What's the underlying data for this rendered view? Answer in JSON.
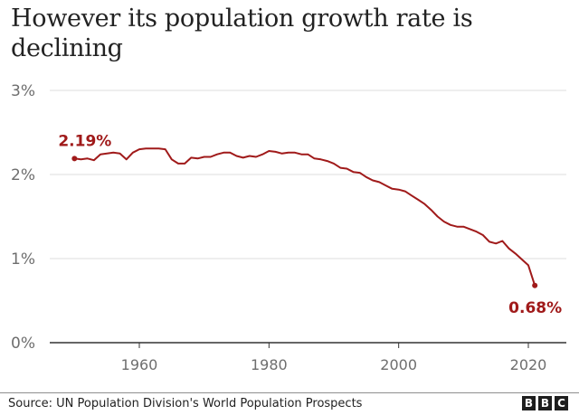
{
  "chart_data": {
    "type": "line",
    "title": "However its population growth rate is declining",
    "xlabel": "",
    "ylabel": "",
    "xlim": [
      1950,
      2021
    ],
    "ylim": [
      0,
      3
    ],
    "grid": true,
    "y_ticks": [
      "0%",
      "1%",
      "2%",
      "3%"
    ],
    "y_tick_values": [
      0,
      1,
      2,
      3
    ],
    "x_ticks": [
      "1960",
      "1980",
      "2000",
      "2020"
    ],
    "x_tick_values": [
      1960,
      1980,
      2000,
      2020
    ],
    "series": [
      {
        "name": "Population growth rate (%)",
        "color": "#a01a1a",
        "x": [
          1950,
          1951,
          1952,
          1953,
          1954,
          1955,
          1956,
          1957,
          1958,
          1959,
          1960,
          1961,
          1962,
          1963,
          1964,
          1965,
          1966,
          1967,
          1968,
          1969,
          1970,
          1971,
          1972,
          1973,
          1974,
          1975,
          1976,
          1977,
          1978,
          1979,
          1980,
          1981,
          1982,
          1983,
          1984,
          1985,
          1986,
          1987,
          1988,
          1989,
          1990,
          1991,
          1992,
          1993,
          1994,
          1995,
          1996,
          1997,
          1998,
          1999,
          2000,
          2001,
          2002,
          2003,
          2004,
          2005,
          2006,
          2007,
          2008,
          2009,
          2010,
          2011,
          2012,
          2013,
          2014,
          2015,
          2016,
          2017,
          2018,
          2019,
          2020,
          2021
        ],
        "values": [
          2.19,
          2.18,
          2.19,
          2.17,
          2.24,
          2.25,
          2.26,
          2.25,
          2.18,
          2.26,
          2.3,
          2.31,
          2.31,
          2.31,
          2.3,
          2.18,
          2.13,
          2.13,
          2.2,
          2.19,
          2.21,
          2.21,
          2.24,
          2.26,
          2.26,
          2.22,
          2.2,
          2.22,
          2.21,
          2.24,
          2.28,
          2.27,
          2.25,
          2.26,
          2.26,
          2.24,
          2.24,
          2.19,
          2.18,
          2.16,
          2.13,
          2.08,
          2.07,
          2.03,
          2.02,
          1.97,
          1.93,
          1.91,
          1.87,
          1.83,
          1.82,
          1.8,
          1.75,
          1.7,
          1.65,
          1.58,
          1.5,
          1.44,
          1.4,
          1.38,
          1.38,
          1.35,
          1.32,
          1.28,
          1.2,
          1.18,
          1.21,
          1.12,
          1.06,
          0.99,
          0.92,
          0.68
        ]
      }
    ],
    "annotations": [
      {
        "text": "2.19%",
        "x": 1950,
        "y": 2.19
      },
      {
        "text": "0.68%",
        "x": 2021,
        "y": 0.68
      }
    ]
  },
  "footer": {
    "source": "Source: UN Population Division's World Population Prospects",
    "logo_letters": [
      "B",
      "B",
      "C"
    ]
  }
}
